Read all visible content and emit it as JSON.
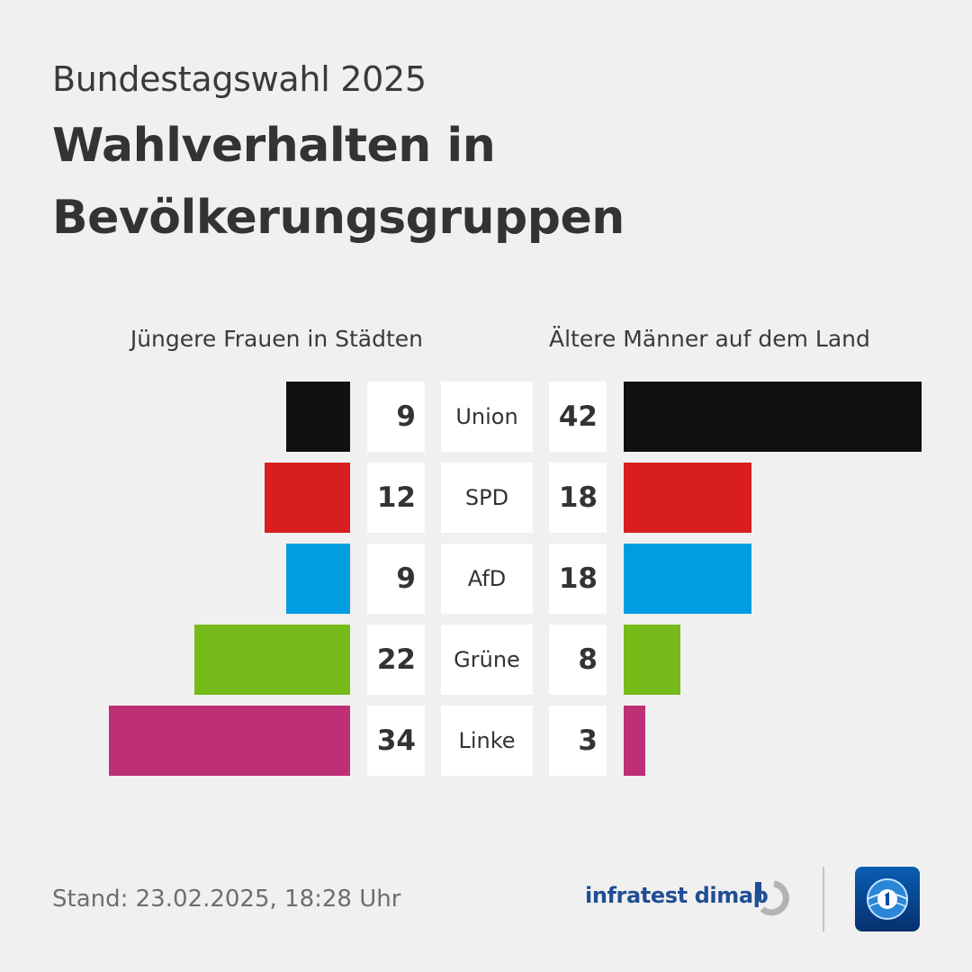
{
  "header": {
    "subtitle": "Bundestagswahl 2025",
    "title_line1": "Wahlverhalten in",
    "title_line2": "Bevölkerungsgruppen"
  },
  "chart_data": {
    "type": "bar",
    "orientation": "horizontal-diverging",
    "categories": [
      "Union",
      "SPD",
      "AfD",
      "Grüne",
      "Linke"
    ],
    "series": [
      {
        "name": "Jüngere Frauen in Städten",
        "side": "left",
        "values": [
          9,
          12,
          9,
          22,
          34
        ]
      },
      {
        "name": "Ältere Männer auf dem Land",
        "side": "right",
        "values": [
          42,
          18,
          18,
          8,
          3
        ]
      }
    ],
    "colors": [
      "#111111",
      "#d81e1e",
      "#009ee0",
      "#77bb1a",
      "#be3075"
    ],
    "xlim": [
      0,
      42
    ],
    "grid": false,
    "legend": "none"
  },
  "footer": {
    "stand": "Stand:  23.02.2025, 18:28 Uhr",
    "institute": "infratest dimap",
    "institute_logo_icon": "infratest-dimap-logo-icon",
    "broadcaster_logo_icon": "tagesschau-logo-icon"
  }
}
